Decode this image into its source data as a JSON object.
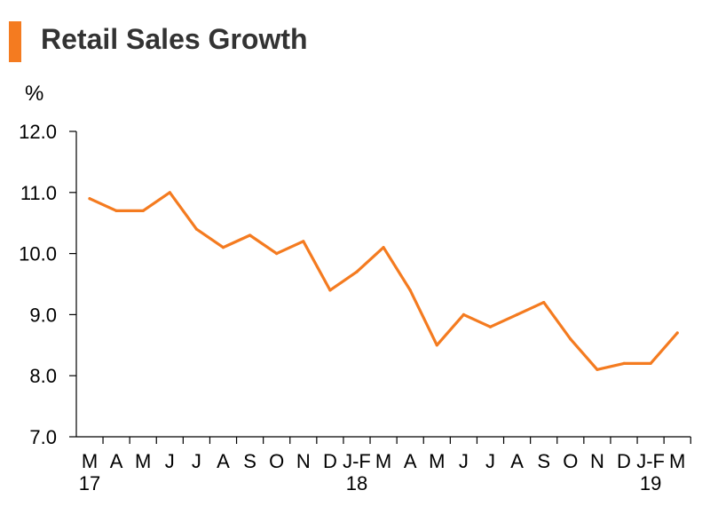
{
  "title": "Retail Sales Growth",
  "colors": {
    "accent": "#F47B20",
    "line": "#F47B20",
    "title": "#333333",
    "axis": "#000000"
  },
  "chart_data": {
    "type": "line",
    "title": "Retail Sales Growth",
    "ylabel": "%",
    "xlabel": "",
    "ylim": [
      7.0,
      12.0
    ],
    "y_ticks": [
      "7.0",
      "8.0",
      "9.0",
      "10.0",
      "11.0",
      "12.0"
    ],
    "grid": false,
    "legend": "none",
    "categories": [
      "M",
      "A",
      "M",
      "J",
      "J",
      "A",
      "S",
      "O",
      "N",
      "D",
      "J-F",
      "M",
      "A",
      "M",
      "J",
      "J",
      "A",
      "S",
      "O",
      "N",
      "D",
      "J-F",
      "M"
    ],
    "year_labels": [
      {
        "label": "17",
        "category_index": 0
      },
      {
        "label": "18",
        "category_index": 10
      },
      {
        "label": "19",
        "category_index": 21
      }
    ],
    "series": [
      {
        "values": [
          10.9,
          10.7,
          10.7,
          11.0,
          10.4,
          10.1,
          10.3,
          10.0,
          10.2,
          9.4,
          9.7,
          10.1,
          9.4,
          8.5,
          9.0,
          8.8,
          9.0,
          9.2,
          8.6,
          8.1,
          8.2,
          8.2,
          8.7
        ]
      }
    ]
  }
}
